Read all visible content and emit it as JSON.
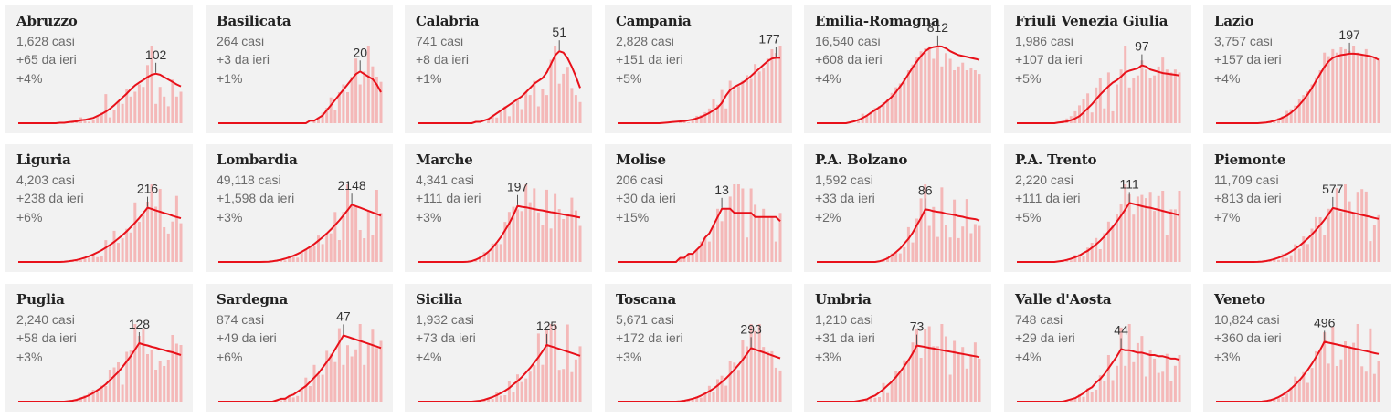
{
  "colors": {
    "panel_bg": "#f2f2f2",
    "bar": "#f4b8b8",
    "line": "#e8111a",
    "tick": "#555555"
  },
  "regions": [
    {
      "name": "Abruzzo",
      "cases": "1,628 casi",
      "delta": "+65 da ieri",
      "pct": "+4%",
      "peak": "102"
    },
    {
      "name": "Basilicata",
      "cases": "264 casi",
      "delta": "+3 da ieri",
      "pct": "+1%",
      "peak": "20"
    },
    {
      "name": "Calabria",
      "cases": "741 casi",
      "delta": "+8 da ieri",
      "pct": "+1%",
      "peak": "51"
    },
    {
      "name": "Campania",
      "cases": "2,828 casi",
      "delta": "+151 da ieri",
      "pct": "+5%",
      "peak": "177"
    },
    {
      "name": "Emilia-Romagna",
      "cases": "16,540 casi",
      "delta": "+608 da ieri",
      "pct": "+4%",
      "peak": "812"
    },
    {
      "name": "Friuli Venezia Giulia",
      "cases": "1,986 casi",
      "delta": "+107 da ieri",
      "pct": "+5%",
      "peak": "97"
    },
    {
      "name": "Lazio",
      "cases": "3,757 casi",
      "delta": "+157 da ieri",
      "pct": "+4%",
      "peak": "197"
    },
    {
      "name": "Liguria",
      "cases": "4,203 casi",
      "delta": "+238 da ieri",
      "pct": "+6%",
      "peak": "216"
    },
    {
      "name": "Lombardia",
      "cases": "49,118 casi",
      "delta": "+1,598 da ieri",
      "pct": "+3%",
      "peak": "2148"
    },
    {
      "name": "Marche",
      "cases": "4,341 casi",
      "delta": "+111 da ieri",
      "pct": "+3%",
      "peak": "197"
    },
    {
      "name": "Molise",
      "cases": "206 casi",
      "delta": "+30 da ieri",
      "pct": "+15%",
      "peak": "13"
    },
    {
      "name": "P.A. Bolzano",
      "cases": "1,592 casi",
      "delta": "+33 da ieri",
      "pct": "+2%",
      "peak": "86"
    },
    {
      "name": "P.A. Trento",
      "cases": "2,220 casi",
      "delta": "+111 da ieri",
      "pct": "+5%",
      "peak": "111"
    },
    {
      "name": "Piemonte",
      "cases": "11,709 casi",
      "delta": "+813 da ieri",
      "pct": "+7%",
      "peak": "577"
    },
    {
      "name": "Puglia",
      "cases": "2,240 casi",
      "delta": "+58 da ieri",
      "pct": "+3%",
      "peak": "128"
    },
    {
      "name": "Sardegna",
      "cases": "874 casi",
      "delta": "+49 da ieri",
      "pct": "+6%",
      "peak": "47"
    },
    {
      "name": "Sicilia",
      "cases": "1,932 casi",
      "delta": "+73 da ieri",
      "pct": "+4%",
      "peak": "125"
    },
    {
      "name": "Toscana",
      "cases": "5,671 casi",
      "delta": "+172 da ieri",
      "pct": "+3%",
      "peak": "293"
    },
    {
      "name": "Umbria",
      "cases": "1,210 casi",
      "delta": "+31 da ieri",
      "pct": "+3%",
      "peak": "73"
    },
    {
      "name": "Valle d'Aosta",
      "cases": "748 casi",
      "delta": "+29 da ieri",
      "pct": "+4%",
      "peak": "44"
    },
    {
      "name": "Veneto",
      "cases": "10,824 casi",
      "delta": "+360 da ieri",
      "pct": "+3%",
      "peak": "496"
    }
  ],
  "chart_data": [
    {
      "type": "bar",
      "title": "Abruzzo",
      "series": [
        {
          "values": [
            0,
            0,
            0,
            0,
            0,
            0,
            0,
            0,
            0,
            0,
            0,
            0,
            2,
            3,
            4,
            12,
            5,
            3,
            6,
            15,
            22,
            60,
            12,
            28,
            45,
            40,
            70,
            55,
            65,
            80,
            75,
            120,
            160,
            40,
            75,
            55,
            35,
            90,
            55,
            65
          ]
        },
        {
          "values": [
            0,
            0,
            0,
            0,
            0,
            0,
            0,
            0,
            0,
            0,
            1,
            1,
            2,
            3,
            4,
            6,
            7,
            9,
            11,
            15,
            19,
            24,
            30,
            37,
            45,
            53,
            61,
            70,
            78,
            84,
            89,
            95,
            100,
            102,
            100,
            95,
            90,
            85,
            80,
            76
          ]
        }
      ]
    },
    {
      "type": "bar",
      "title": "Basilicata",
      "series": [
        {
          "values": [
            0,
            0,
            0,
            0,
            0,
            0,
            0,
            0,
            0,
            0,
            0,
            0,
            0,
            0,
            0,
            0,
            0,
            0,
            0,
            0,
            0,
            0,
            0,
            1,
            2,
            4,
            6,
            10,
            5,
            12,
            15,
            12,
            18,
            25,
            15,
            20,
            30,
            22,
            18,
            16
          ]
        },
        {
          "values": [
            0,
            0,
            0,
            0,
            0,
            0,
            0,
            0,
            0,
            0,
            0,
            0,
            0,
            0,
            0,
            0,
            0,
            0,
            0,
            0,
            0,
            0,
            1,
            1,
            2,
            3,
            5,
            7,
            9,
            11,
            13,
            15,
            17,
            19,
            20,
            19,
            18,
            17,
            15,
            12
          ]
        }
      ]
    },
    {
      "type": "bar",
      "title": "Calabria",
      "series": [
        {
          "values": [
            0,
            0,
            0,
            0,
            0,
            0,
            0,
            0,
            0,
            0,
            0,
            0,
            0,
            0,
            0,
            0,
            0,
            2,
            6,
            4,
            8,
            12,
            5,
            14,
            18,
            10,
            22,
            20,
            30,
            12,
            24,
            20,
            45,
            55,
            28,
            35,
            40,
            25,
            20,
            15
          ]
        },
        {
          "values": [
            0,
            0,
            0,
            0,
            0,
            0,
            0,
            0,
            0,
            0,
            0,
            0,
            0,
            0,
            1,
            1,
            2,
            3,
            5,
            7,
            9,
            11,
            13,
            15,
            17,
            19,
            22,
            25,
            28,
            30,
            32,
            36,
            42,
            48,
            51,
            50,
            46,
            40,
            33,
            25
          ]
        }
      ]
    },
    {
      "type": "bar",
      "title": "Campania",
      "series": [
        {
          "values": [
            0,
            0,
            0,
            0,
            0,
            0,
            0,
            0,
            0,
            0,
            0,
            0,
            0,
            0,
            0,
            3,
            6,
            2,
            10,
            20,
            22,
            30,
            40,
            65,
            50,
            90,
            40,
            115,
            90,
            100,
            115,
            130,
            120,
            160,
            140,
            150,
            175,
            200,
            190,
            210
          ]
        },
        {
          "values": [
            0,
            0,
            0,
            0,
            0,
            0,
            0,
            0,
            0,
            0,
            0,
            1,
            2,
            3,
            4,
            5,
            6,
            8,
            10,
            13,
            17,
            22,
            28,
            35,
            42,
            55,
            75,
            90,
            98,
            104,
            110,
            118,
            128,
            138,
            148,
            158,
            168,
            175,
            177,
            177
          ]
        }
      ]
    },
    {
      "type": "bar",
      "title": "Emilia-Romagna",
      "series": [
        {
          "values": [
            0,
            0,
            0,
            0,
            0,
            0,
            0,
            0,
            0,
            0,
            50,
            100,
            80,
            120,
            160,
            180,
            220,
            260,
            320,
            380,
            420,
            480,
            560,
            620,
            700,
            760,
            790,
            812,
            680,
            820,
            600,
            740,
            680,
            560,
            600,
            640,
            560,
            580,
            560,
            520
          ]
        },
        {
          "values": [
            0,
            0,
            0,
            0,
            0,
            0,
            0,
            0,
            10,
            20,
            35,
            55,
            80,
            110,
            140,
            170,
            200,
            240,
            280,
            330,
            390,
            450,
            520,
            590,
            650,
            710,
            760,
            790,
            805,
            812,
            810,
            790,
            760,
            740,
            720,
            710,
            700,
            690,
            680,
            670
          ]
        }
      ]
    },
    {
      "type": "bar",
      "title": "Friuli Venezia Giulia",
      "series": [
        {
          "values": [
            0,
            0,
            0,
            0,
            0,
            0,
            0,
            0,
            0,
            0,
            0,
            4,
            8,
            12,
            20,
            30,
            40,
            50,
            18,
            60,
            75,
            25,
            85,
            20,
            65,
            90,
            130,
            60,
            75,
            80,
            105,
            90,
            75,
            80,
            95,
            110,
            90,
            85,
            90,
            85
          ]
        },
        {
          "values": [
            0,
            0,
            0,
            0,
            0,
            0,
            0,
            0,
            0,
            0,
            1,
            2,
            3,
            5,
            8,
            12,
            18,
            25,
            32,
            40,
            48,
            55,
            62,
            68,
            72,
            78,
            85,
            88,
            90,
            92,
            97,
            95,
            90,
            88,
            86,
            84,
            83,
            82,
            81,
            80
          ]
        }
      ]
    },
    {
      "type": "bar",
      "title": "Lazio",
      "series": [
        {
          "values": [
            0,
            0,
            0,
            0,
            0,
            0,
            0,
            0,
            0,
            0,
            0,
            0,
            0,
            5,
            10,
            15,
            20,
            35,
            40,
            50,
            70,
            80,
            90,
            110,
            130,
            150,
            200,
            190,
            210,
            200,
            215,
            210,
            205,
            220,
            200,
            195,
            210,
            190,
            185,
            180
          ]
        },
        {
          "values": [
            0,
            0,
            0,
            0,
            0,
            0,
            0,
            0,
            0,
            0,
            0,
            1,
            2,
            4,
            7,
            11,
            16,
            22,
            30,
            40,
            52,
            66,
            82,
            100,
            120,
            140,
            160,
            175,
            185,
            190,
            193,
            195,
            197,
            197,
            196,
            194,
            192,
            190,
            186,
            180
          ]
        }
      ]
    }
  ]
}
